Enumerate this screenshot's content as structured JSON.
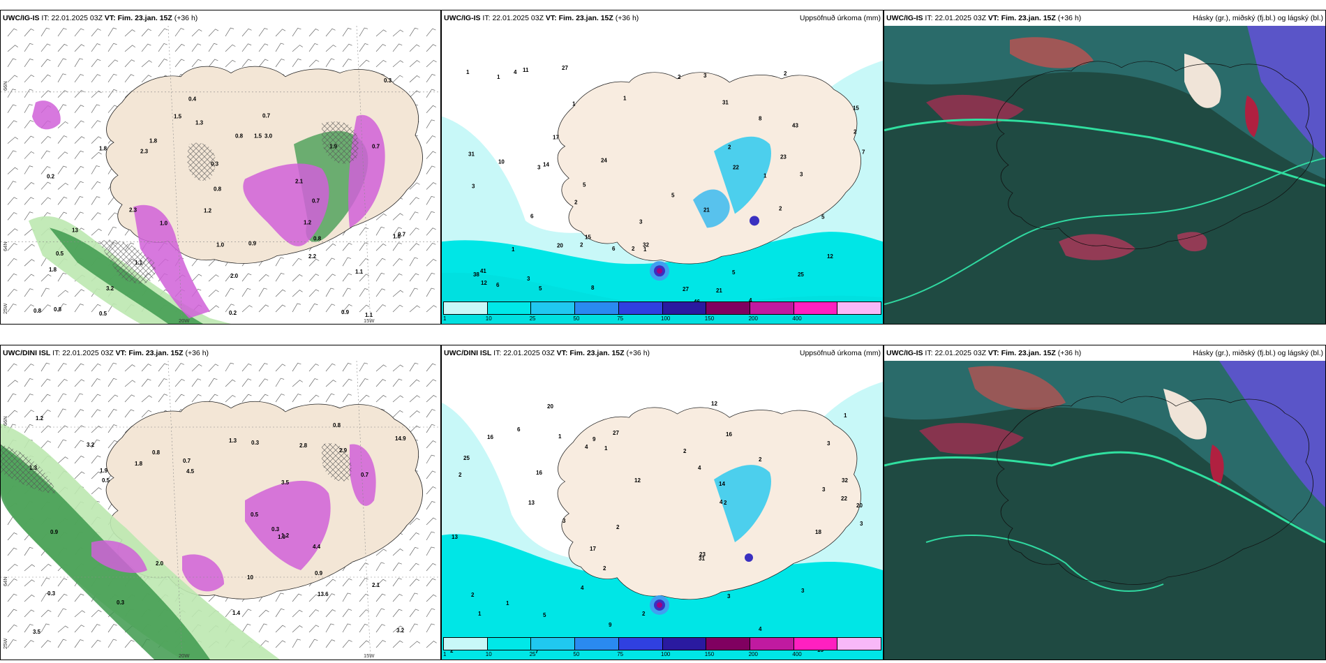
{
  "colors": {
    "land": "#f5e8d8",
    "sea": "#ffffff",
    "precip_light": "#c8f5f5",
    "precip_cyan": "#00e8e8",
    "precip_magenta": "#e070e0",
    "precip_green": "#3aa04a",
    "cloud_high": "#5050c8",
    "cloud_mid": "#2a6a6a",
    "cloud_low": "#1f4a40"
  },
  "rows": [
    {
      "model": "UWC/IG-IS",
      "it_label": "IT:",
      "it_value": "22.01.2025 03Z",
      "vt_label": "VT: Fim. 23.jan. 15Z",
      "lead": "(+36 h)",
      "precip_model": "UWC/IG-IS",
      "cloud_model": "UWC/IG-IS",
      "lat_labels": [
        "66N",
        "64N",
        "25W",
        "20W",
        "15W"
      ],
      "precip_values": [
        "3",
        "3",
        "4",
        "2",
        "8",
        "1",
        "2",
        "2",
        "2",
        "1",
        "3",
        "2",
        "1",
        "9",
        "5",
        "5",
        "5",
        "7",
        "15",
        "24",
        "14",
        "14",
        "21",
        "20",
        "25",
        "22",
        "27",
        "41",
        "43",
        "38",
        "15",
        "6",
        "6",
        "12",
        "8",
        "31",
        "10",
        "11",
        "6",
        "8",
        "3",
        "3",
        "5",
        "4",
        "1",
        "12",
        "32",
        "17",
        "27",
        "31",
        "46",
        "23",
        "21",
        "2",
        "2",
        "2",
        "5",
        "1",
        "1",
        "3",
        "3",
        "1"
      ],
      "snow_values": [
        "0.3",
        "1.1",
        "0.8",
        "0.2",
        "0.7",
        "1.2",
        "1.0",
        "0.8",
        "0.9",
        "2.3",
        "1.3",
        "1.8",
        "0.7",
        "0.3",
        "1.1",
        "2.2",
        "1.8",
        "3.2",
        "1.0",
        "0.7",
        "2.0",
        "3.0",
        "0.2",
        "0.5",
        "1.8",
        "0.8",
        "1.0",
        "0.9",
        "2.3",
        "1.9",
        "0.8",
        "0.5",
        "0.4",
        "1.1",
        "1.2",
        "2.1",
        "13",
        "1.5",
        "0.7",
        "1.5",
        "0.8"
      ]
    },
    {
      "model": "UWC/DINI ISL",
      "it_label": "IT:",
      "it_value": "22.01.2025 03Z",
      "vt_label": "VT: Fim. 23.jan. 15Z",
      "lead": "(+36 h)",
      "precip_model": "UWC/DINI ISL",
      "cloud_model": "UWC/DINI ISL",
      "lat_labels": [
        "66N",
        "64N",
        "25W",
        "20W",
        "15W"
      ],
      "precip_values": [
        "3",
        "2",
        "2",
        "3",
        "4",
        "3",
        "3",
        "2",
        "1",
        "2",
        "1",
        "2",
        "17",
        "15",
        "16",
        "16",
        "22",
        "23",
        "20",
        "14",
        "13",
        "32",
        "9",
        "5",
        "12",
        "1",
        "2",
        "3",
        "2",
        "1",
        "3",
        "2",
        "3",
        "4",
        "4",
        "9",
        "12",
        "27",
        "31",
        "18",
        "25",
        "20",
        "16",
        "13",
        "2",
        "4",
        "4",
        "6",
        "7",
        "1"
      ],
      "snow_values": [
        "1.3",
        "0.3",
        "0.9",
        "0.7",
        "0.5",
        "0.3",
        "0.8",
        "0.5",
        "0.3",
        "1.3",
        "4.4",
        "3.5",
        "2.1",
        "1.2",
        "0.3",
        "1.8",
        "2.8",
        "2.9",
        "3.2",
        "1.9",
        "0.7",
        "0.8",
        "0.9",
        "3.2",
        "3.5",
        "13.6",
        "14.9",
        "2.0",
        "1.4",
        "1.2",
        "1.0",
        "4.5",
        "10"
      ]
    }
  ],
  "precip_title": "Uppsöfnuð úrkoma (mm)",
  "cloud_title": "Hásky (gr.), miðský (fj.bl.) og lágský (bl.)",
  "colorbar": {
    "labels": [
      "1",
      "10",
      "25",
      "50",
      "75",
      "100",
      "150",
      "200",
      "400"
    ],
    "colors": [
      "#c8f8f8",
      "#00e8e8",
      "#20c8f0",
      "#2a8af0",
      "#3040e0",
      "#2a1aa0",
      "#800060",
      "#c01aa0",
      "#ff20c0",
      "#f8b8f8"
    ]
  }
}
